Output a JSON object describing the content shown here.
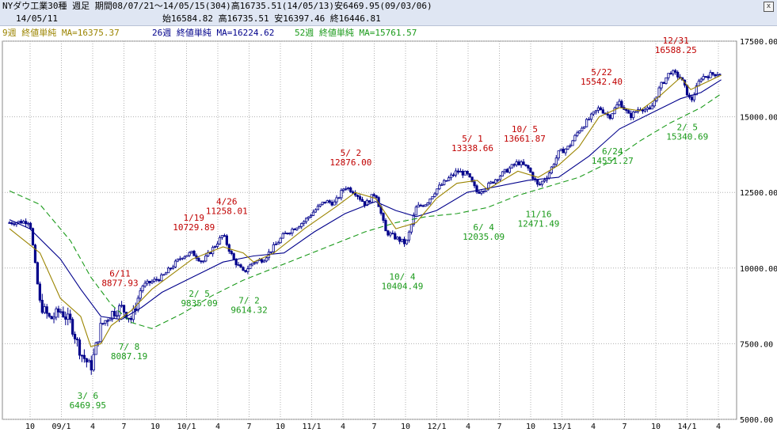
{
  "header": {
    "title": "NYダウ工業30種 週足 期間08/07/21～14/05/15(304)高16735.51(14/05/13)安6469.95(09/03/06)",
    "date": "14/05/11",
    "ohlc": "始16584.82 高16735.51 安16397.46 終16446.81",
    "close_label": "x",
    "ma": [
      {
        "text": "9週 終値単純 MA=16375.37",
        "color": "#9b8400"
      },
      {
        "text": "26週 終値単純 MA=16224.62",
        "color": "#00008b"
      },
      {
        "text": "52週 終値単純 MA=15761.57",
        "color": "#1a9a1a"
      }
    ]
  },
  "chart_data": {
    "type": "candlestick",
    "title": "NYダウ工業30種 週足",
    "ylim": [
      5000,
      17500
    ],
    "y_ticks": [
      "17500.00",
      "15000.00",
      "12500.00",
      "10000.00",
      "7500.00",
      "5000.00"
    ],
    "x_ticks": [
      "10",
      "09/1",
      "4",
      "7",
      "10",
      "10/1",
      "4",
      "7",
      "10",
      "11/1",
      "4",
      "7",
      "10",
      "12/1",
      "4",
      "7",
      "10",
      "13/1",
      "4",
      "7",
      "10",
      "14/1",
      "4"
    ],
    "grid": true,
    "colors": {
      "candle": "#00008b",
      "ma9": "#9b8400",
      "ma26": "#00008b",
      "ma52": "#1a9a1a",
      "high": "#c00000",
      "low": "#1a9a1a",
      "grid": "#b0b0b0"
    },
    "price_path": [
      [
        "08/07",
        11500
      ],
      [
        "08/09",
        11550
      ],
      [
        "08/10",
        8800
      ],
      [
        "08/11",
        8300
      ],
      [
        "08/12",
        8600
      ],
      [
        "09/01",
        8200
      ],
      [
        "09/02",
        7200
      ],
      [
        "09/03",
        6700
      ],
      [
        "09/04",
        8100
      ],
      [
        "09/05",
        8500
      ],
      [
        "09/06",
        8700
      ],
      [
        "09/07",
        8300
      ],
      [
        "09/08",
        9400
      ],
      [
        "09/10",
        9700
      ],
      [
        "09/12",
        10400
      ],
      [
        "10/01",
        10500
      ],
      [
        "10/02",
        10200
      ],
      [
        "10/04",
        11100
      ],
      [
        "10/05",
        10300
      ],
      [
        "10/06",
        9850
      ],
      [
        "10/07",
        10200
      ],
      [
        "10/08",
        10300
      ],
      [
        "10/10",
        11100
      ],
      [
        "10/12",
        11550
      ],
      [
        "11/01",
        11900
      ],
      [
        "11/02",
        12200
      ],
      [
        "11/03",
        12150
      ],
      [
        "11/04",
        12700
      ],
      [
        "11/05",
        12500
      ],
      [
        "11/06",
        12100
      ],
      [
        "11/07",
        12500
      ],
      [
        "11/08",
        11200
      ],
      [
        "11/09",
        11000
      ],
      [
        "11/10",
        10800
      ],
      [
        "11/11",
        12000
      ],
      [
        "11/12",
        12150
      ],
      [
        "12/01",
        12600
      ],
      [
        "12/03",
        13200
      ],
      [
        "12/04",
        13100
      ],
      [
        "12/05",
        12500
      ],
      [
        "12/06",
        12700
      ],
      [
        "12/07",
        13000
      ],
      [
        "12/09",
        13500
      ],
      [
        "12/10",
        13300
      ],
      [
        "12/11",
        12700
      ],
      [
        "12/12",
        13100
      ],
      [
        "13/01",
        13800
      ],
      [
        "13/02",
        14000
      ],
      [
        "13/03",
        14550
      ],
      [
        "13/05",
        15300
      ],
      [
        "13/06",
        15000
      ],
      [
        "13/07",
        15500
      ],
      [
        "13/08",
        15000
      ],
      [
        "13/09",
        15300
      ],
      [
        "13/10",
        15200
      ],
      [
        "13/11",
        16000
      ],
      [
        "13/12",
        16500
      ],
      [
        "14/01",
        16300
      ],
      [
        "14/02",
        15500
      ],
      [
        "14/03",
        16300
      ],
      [
        "14/04",
        16400
      ],
      [
        "14/05",
        16450
      ]
    ],
    "ma9_path": [
      [
        "08/07",
        11300
      ],
      [
        "08/10",
        10500
      ],
      [
        "08/12",
        9000
      ],
      [
        "09/02",
        8400
      ],
      [
        "09/03",
        7400
      ],
      [
        "09/04",
        7500
      ],
      [
        "09/05",
        8100
      ],
      [
        "09/07",
        8600
      ],
      [
        "09/09",
        9300
      ],
      [
        "10/01",
        10300
      ],
      [
        "10/04",
        10700
      ],
      [
        "10/06",
        10500
      ],
      [
        "10/07",
        10200
      ],
      [
        "10/09",
        10500
      ],
      [
        "10/12",
        11300
      ],
      [
        "11/03",
        12000
      ],
      [
        "11/05",
        12500
      ],
      [
        "11/07",
        12300
      ],
      [
        "11/09",
        11300
      ],
      [
        "11/11",
        11500
      ],
      [
        "12/01",
        12300
      ],
      [
        "12/03",
        12800
      ],
      [
        "12/05",
        12900
      ],
      [
        "12/06",
        12600
      ],
      [
        "12/09",
        13200
      ],
      [
        "12/11",
        13000
      ],
      [
        "13/01",
        13400
      ],
      [
        "13/03",
        14000
      ],
      [
        "13/05",
        15000
      ],
      [
        "13/07",
        15300
      ],
      [
        "13/09",
        15200
      ],
      [
        "13/11",
        15700
      ],
      [
        "14/01",
        16300
      ],
      [
        "14/02",
        15900
      ],
      [
        "14/05",
        16375
      ]
    ],
    "ma26_path": [
      [
        "08/07",
        11600
      ],
      [
        "08/09",
        11300
      ],
      [
        "08/12",
        10300
      ],
      [
        "09/02",
        9300
      ],
      [
        "09/04",
        8400
      ],
      [
        "09/06",
        8300
      ],
      [
        "09/08",
        8700
      ],
      [
        "09/10",
        9200
      ],
      [
        "10/01",
        9700
      ],
      [
        "10/04",
        10200
      ],
      [
        "10/07",
        10400
      ],
      [
        "10/10",
        10500
      ],
      [
        "11/01",
        11200
      ],
      [
        "11/04",
        11800
      ],
      [
        "11/07",
        12200
      ],
      [
        "11/09",
        11900
      ],
      [
        "11/11",
        11700
      ],
      [
        "12/01",
        11900
      ],
      [
        "12/04",
        12500
      ],
      [
        "12/07",
        12700
      ],
      [
        "12/10",
        12900
      ],
      [
        "13/01",
        13000
      ],
      [
        "13/04",
        13700
      ],
      [
        "13/07",
        14600
      ],
      [
        "13/10",
        15100
      ],
      [
        "14/01",
        15600
      ],
      [
        "14/03",
        15800
      ],
      [
        "14/05",
        16225
      ]
    ],
    "ma52_path": [
      [
        "08/07",
        12550
      ],
      [
        "08/10",
        12100
      ],
      [
        "09/01",
        10900
      ],
      [
        "09/03",
        9700
      ],
      [
        "09/05",
        8800
      ],
      [
        "09/07",
        8200
      ],
      [
        "09/09",
        8000
      ],
      [
        "09/12",
        8500
      ],
      [
        "10/03",
        9100
      ],
      [
        "10/06",
        9600
      ],
      [
        "10/09",
        10000
      ],
      [
        "10/12",
        10400
      ],
      [
        "11/03",
        10800
      ],
      [
        "11/06",
        11200
      ],
      [
        "11/09",
        11500
      ],
      [
        "11/12",
        11700
      ],
      [
        "12/03",
        11800
      ],
      [
        "12/06",
        12000
      ],
      [
        "12/09",
        12400
      ],
      [
        "12/12",
        12700
      ],
      [
        "13/03",
        13000
      ],
      [
        "13/06",
        13500
      ],
      [
        "13/09",
        14200
      ],
      [
        "13/12",
        14800
      ],
      [
        "14/03",
        15300
      ],
      [
        "14/05",
        15760
      ]
    ],
    "annotations": [
      {
        "kind": "low",
        "date": "09/03/06",
        "value": 6469.95,
        "lines": [
          "3/ 6",
          "6469.95"
        ]
      },
      {
        "kind": "high",
        "date": "09/06/11",
        "value": 8877.93,
        "lines": [
          "6/11",
          "8877.93"
        ]
      },
      {
        "kind": "low",
        "date": "09/07/08",
        "value": 8087.19,
        "lines": [
          "7/ 8",
          "8087.19"
        ]
      },
      {
        "kind": "high",
        "date": "10/01/19",
        "value": 10729.89,
        "lines": [
          "1/19",
          "10729.89"
        ]
      },
      {
        "kind": "low",
        "date": "10/02/05",
        "value": 9835.09,
        "lines": [
          "2/ 5",
          "9835.09"
        ]
      },
      {
        "kind": "high",
        "date": "10/04/26",
        "value": 11258.01,
        "lines": [
          "4/26",
          "11258.01"
        ]
      },
      {
        "kind": "low",
        "date": "10/07/02",
        "value": 9614.32,
        "lines": [
          "7/ 2",
          "9614.32"
        ]
      },
      {
        "kind": "high",
        "date": "11/05/02",
        "value": 12876.0,
        "lines": [
          "5/ 2",
          "12876.00"
        ]
      },
      {
        "kind": "low",
        "date": "11/10/04",
        "value": 10404.49,
        "lines": [
          "10/ 4",
          "10404.49"
        ]
      },
      {
        "kind": "high",
        "date": "12/05/01",
        "value": 13338.66,
        "lines": [
          "5/ 1",
          "13338.66"
        ]
      },
      {
        "kind": "low",
        "date": "12/06/04",
        "value": 12035.09,
        "lines": [
          "6/ 4",
          "12035.09"
        ]
      },
      {
        "kind": "high",
        "date": "12/10/05",
        "value": 13661.87,
        "lines": [
          "10/ 5",
          "13661.87"
        ]
      },
      {
        "kind": "low",
        "date": "12/11/16",
        "value": 12471.49,
        "lines": [
          "11/16",
          "12471.49"
        ]
      },
      {
        "kind": "high",
        "date": "13/05/22",
        "value": 15542.4,
        "lines": [
          "5/22",
          "15542.40"
        ]
      },
      {
        "kind": "low",
        "date": "13/06/24",
        "value": 14551.27,
        "lines": [
          "6/24",
          "14551.27"
        ]
      },
      {
        "kind": "high",
        "date": "13/12/31",
        "value": 16588.25,
        "lines": [
          "12/31",
          "16588.25"
        ]
      },
      {
        "kind": "low",
        "date": "14/02/05",
        "value": 15340.69,
        "lines": [
          "2/ 5",
          "15340.69"
        ]
      }
    ]
  }
}
